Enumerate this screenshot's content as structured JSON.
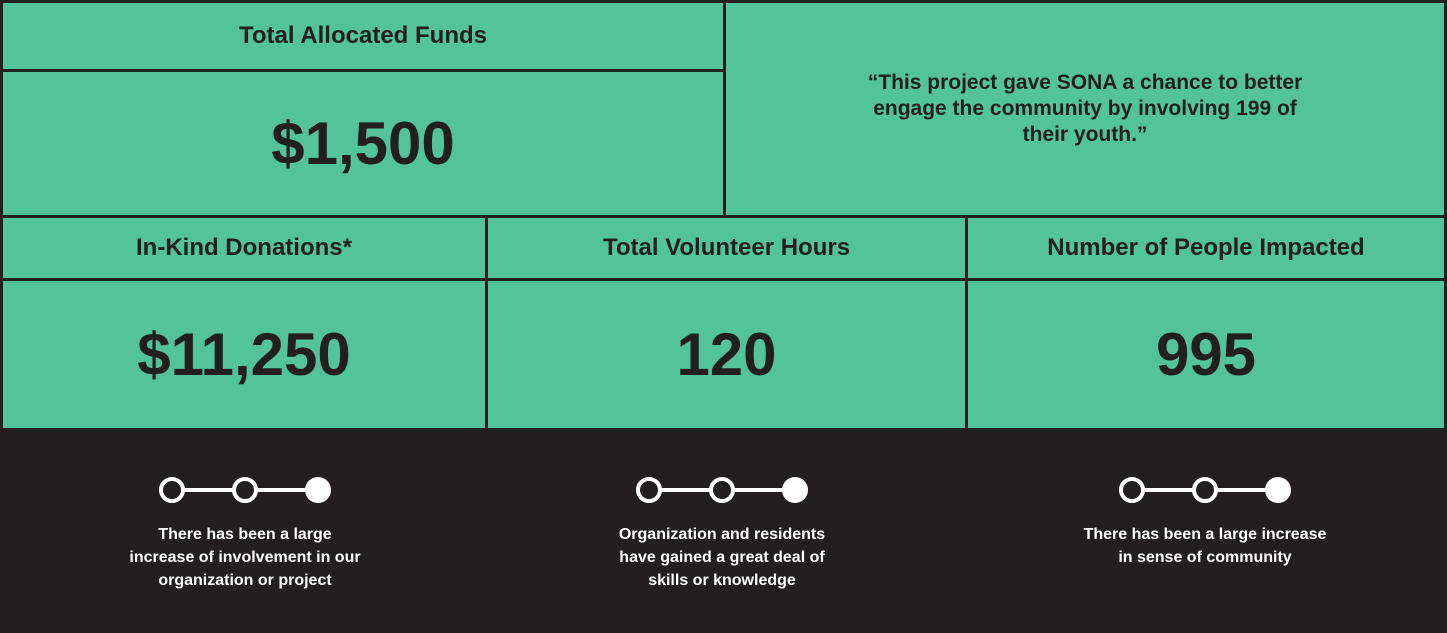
{
  "funds": {
    "label": "Total Allocated Funds",
    "value": "$1,500"
  },
  "quote": [
    "“This project gave SONA a chance to better",
    "engage the community by involving 199 of",
    "their youth.”"
  ],
  "metrics": [
    {
      "label": "In-Kind Donations*",
      "value": "$11,250"
    },
    {
      "label": "Total Volunteer Hours",
      "value": "120"
    },
    {
      "label": "Number of People Impacted",
      "value": "995"
    }
  ],
  "outcomes": [
    [
      "There has been a large",
      "increase of involvement in our",
      "organization or project"
    ],
    [
      "Organization and residents",
      "have gained a great deal of",
      "skills or knowledge"
    ],
    [
      "There has been a large increase",
      "in sense of community"
    ]
  ]
}
